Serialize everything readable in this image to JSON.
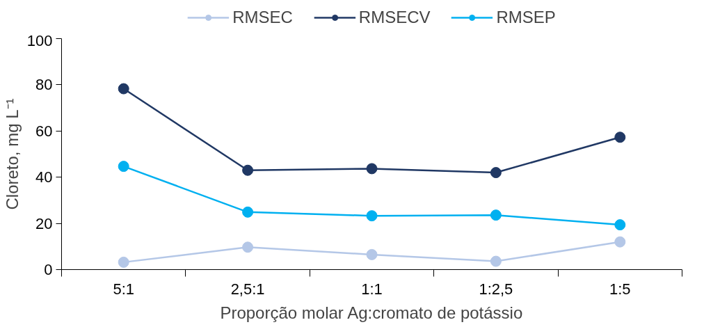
{
  "chart_data": {
    "type": "line",
    "xlabel": "Proporção molar Ag:cromato de potássio",
    "ylabel": "Cloreto, mg L⁻¹",
    "categories": [
      "5:1",
      "2,5:1",
      "1:1",
      "1:2,5",
      "1:5"
    ],
    "series": [
      {
        "name": "RMSEC",
        "color": "#b4c7e7",
        "values": [
          3.2,
          9.7,
          6.5,
          3.6,
          12
        ]
      },
      {
        "name": "RMSECV",
        "color": "#203864",
        "values": [
          78.3,
          43,
          43.7,
          42,
          57.3
        ]
      },
      {
        "name": "RMSEP",
        "color": "#00b0f0",
        "values": [
          44.7,
          24.9,
          23.3,
          23.6,
          19.4
        ]
      }
    ],
    "ylim": [
      0,
      100
    ],
    "yticks": [
      0,
      20,
      40,
      60,
      80,
      100
    ],
    "grid": false,
    "legend": "top",
    "marker": "circle",
    "line_style": "solid"
  }
}
